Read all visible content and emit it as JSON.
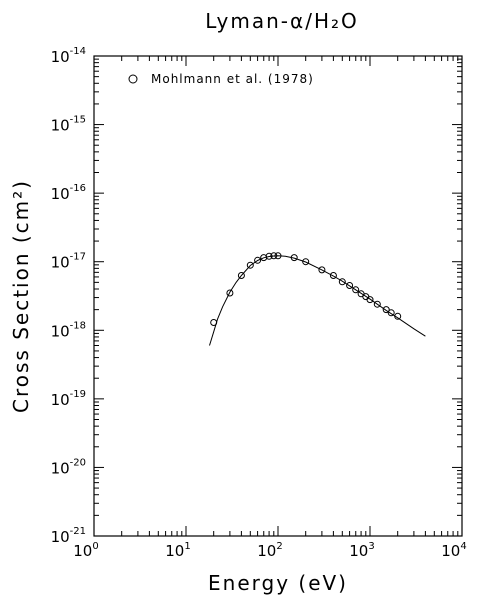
{
  "chart_data": {
    "type": "scatter",
    "title": "Lyman-α/H₂O",
    "xlabel": "Energy (eV)",
    "ylabel": "Cross Section (cm²)",
    "x_scale": "log",
    "y_scale": "log",
    "xlim": [
      1,
      10000
    ],
    "ylim": [
      1e-21,
      1e-14
    ],
    "x_ticks": [
      {
        "base": "10",
        "exp": "0",
        "value": 1
      },
      {
        "base": "10",
        "exp": "1",
        "value": 10
      },
      {
        "base": "10",
        "exp": "2",
        "value": 100
      },
      {
        "base": "10",
        "exp": "3",
        "value": 1000
      },
      {
        "base": "10",
        "exp": "4",
        "value": 10000
      }
    ],
    "y_ticks": [
      {
        "base": "10",
        "exp": "-21",
        "value": 1e-21
      },
      {
        "base": "10",
        "exp": "-20",
        "value": 1e-20
      },
      {
        "base": "10",
        "exp": "-19",
        "value": 1e-19
      },
      {
        "base": "10",
        "exp": "-18",
        "value": 1e-18
      },
      {
        "base": "10",
        "exp": "-17",
        "value": 1e-17
      },
      {
        "base": "10",
        "exp": "-16",
        "value": 1e-16
      },
      {
        "base": "10",
        "exp": "-15",
        "value": 1e-15
      },
      {
        "base": "10",
        "exp": "-14",
        "value": 1e-14
      }
    ],
    "legend_position": "top-left",
    "series": [
      {
        "name": "Mohlmann et al. (1978)",
        "marker": "open-circle",
        "x": [
          20,
          30,
          40,
          50,
          60,
          70,
          80,
          90,
          100,
          150,
          200,
          300,
          400,
          500,
          600,
          700,
          800,
          900,
          1000,
          1200,
          1500,
          1700,
          2000
        ],
        "y": [
          1.3e-18,
          3.5e-18,
          6.3e-18,
          8.9e-18,
          1.05e-17,
          1.15e-17,
          1.2e-17,
          1.22e-17,
          1.22e-17,
          1.15e-17,
          1e-17,
          7.6e-18,
          6.3e-18,
          5.1e-18,
          4.5e-18,
          3.9e-18,
          3.4e-18,
          3.1e-18,
          2.8e-18,
          2.4e-18,
          2e-18,
          1.8e-18,
          1.6e-18
        ]
      }
    ],
    "fit_curve": {
      "x": [
        18,
        20,
        22,
        25,
        30,
        35,
        40,
        50,
        60,
        70,
        80,
        90,
        100,
        120,
        150,
        200,
        300,
        400,
        500,
        700,
        1000,
        1500,
        2000,
        3000,
        4000
      ],
      "y": [
        6e-19,
        9.5e-19,
        1.45e-18,
        2.2e-18,
        3.6e-18,
        5e-18,
        6.3e-18,
        8.8e-18,
        1.04e-17,
        1.14e-17,
        1.19e-17,
        1.21e-17,
        1.22e-17,
        1.2e-17,
        1.13e-17,
        9.9e-18,
        7.6e-18,
        6.2e-18,
        5.2e-18,
        3.9e-18,
        2.85e-18,
        1.95e-18,
        1.52e-18,
        1.05e-18,
        8.2e-19
      ]
    }
  }
}
